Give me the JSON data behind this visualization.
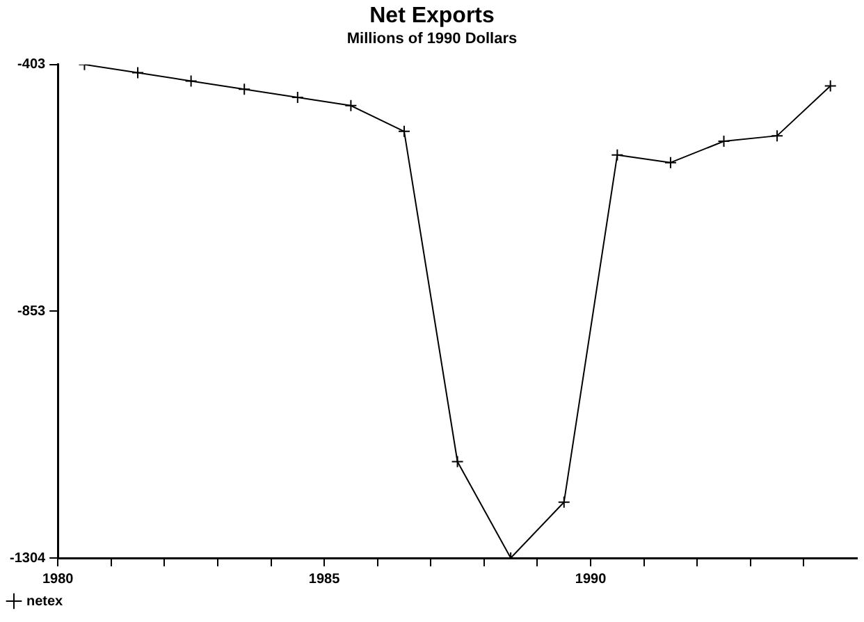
{
  "chart_data": {
    "type": "line",
    "title": "Net Exports",
    "subtitle": "Millions of 1990 Dollars",
    "x": [
      1980.5,
      1981.5,
      1982.5,
      1983.5,
      1984.5,
      1985.5,
      1986.5,
      1987.5,
      1988.5,
      1989.5,
      1990.5,
      1991.5,
      1992.5,
      1993.5,
      1994.5
    ],
    "series": [
      {
        "name": "netex",
        "color": "#000000",
        "values": [
          -403,
          -418,
          -433,
          -448,
          -463,
          -478,
          -525,
          -1128,
          -1304,
          -1202,
          -568,
          -582,
          -543,
          -533,
          -442
        ]
      }
    ],
    "xlim": [
      1980,
      1995
    ],
    "xticks": [
      1980,
      {
        "value": 1981,
        "label": null
      },
      {
        "value": 1982,
        "label": null
      },
      {
        "value": 1983,
        "label": null
      },
      {
        "value": 1984,
        "label": null
      },
      1985,
      {
        "value": 1986,
        "label": null
      },
      {
        "value": 1987,
        "label": null
      },
      {
        "value": 1988,
        "label": null
      },
      {
        "value": 1989,
        "label": null
      },
      1990,
      {
        "value": 1991,
        "label": null
      },
      {
        "value": 1992,
        "label": null
      },
      {
        "value": 1993,
        "label": null
      },
      {
        "value": 1994,
        "label": null
      }
    ],
    "ylim": [
      -1304,
      -403
    ],
    "yticks": [
      -403,
      -853,
      -1304
    ],
    "grid": false,
    "legend": "bottom left",
    "marker": "cross",
    "line_style": "solid"
  }
}
